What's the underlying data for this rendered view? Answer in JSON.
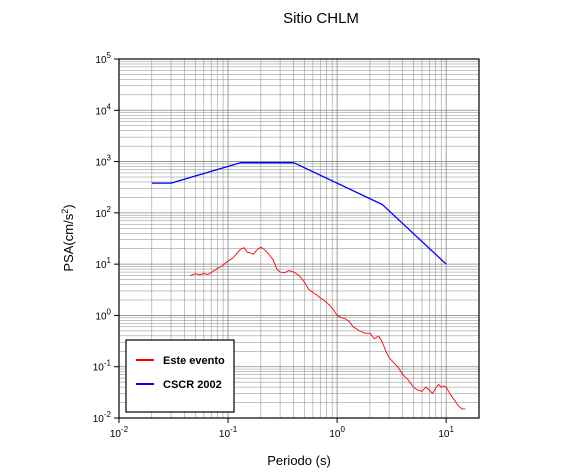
{
  "chart_data": {
    "type": "line",
    "title": "Sitio CHLM",
    "xlabel": "Periodo (s)",
    "ylabel_base": "PSA(cm/s",
    "ylabel_sup": "2",
    "ylabel_close": ")",
    "x_scale": "log",
    "y_scale": "log",
    "xlim": [
      0.01,
      20
    ],
    "ylim": [
      0.01,
      100000
    ],
    "grid": true,
    "legend_position": "bottom-left",
    "x_ticks": [
      {
        "value": 0.01,
        "base": "10",
        "exp": "-2"
      },
      {
        "value": 0.1,
        "base": "10",
        "exp": "-1"
      },
      {
        "value": 1,
        "base": "10",
        "exp": "0"
      },
      {
        "value": 10,
        "base": "10",
        "exp": "1"
      }
    ],
    "y_ticks": [
      {
        "value": 0.01,
        "base": "10",
        "exp": "-2"
      },
      {
        "value": 0.1,
        "base": "10",
        "exp": "-1"
      },
      {
        "value": 1,
        "base": "10",
        "exp": "0"
      },
      {
        "value": 10,
        "base": "10",
        "exp": "1"
      },
      {
        "value": 100,
        "base": "10",
        "exp": "2"
      },
      {
        "value": 1000,
        "base": "10",
        "exp": "3"
      },
      {
        "value": 10000,
        "base": "10",
        "exp": "4"
      },
      {
        "value": 100000,
        "base": "10",
        "exp": "5"
      }
    ],
    "series": [
      {
        "name": "Este evento",
        "color": "#ff0000",
        "x": [
          0.045,
          0.05,
          0.055,
          0.06,
          0.065,
          0.07,
          0.075,
          0.08,
          0.085,
          0.09,
          0.095,
          0.1,
          0.11,
          0.12,
          0.13,
          0.14,
          0.15,
          0.16,
          0.17,
          0.18,
          0.19,
          0.2,
          0.22,
          0.24,
          0.26,
          0.28,
          0.3,
          0.33,
          0.36,
          0.4,
          0.45,
          0.5,
          0.55,
          0.6,
          0.65,
          0.7,
          0.75,
          0.8,
          0.9,
          1.0,
          1.1,
          1.2,
          1.3,
          1.4,
          1.5,
          1.6,
          1.8,
          2.0,
          2.2,
          2.4,
          2.6,
          2.8,
          3.0,
          3.3,
          3.6,
          4.0,
          4.5,
          5.0,
          5.5,
          6.0,
          6.5,
          7.0,
          7.5,
          8.0,
          8.5,
          9.0,
          9.5,
          10.0,
          11.0,
          12.0,
          13.0,
          14.0,
          15.0
        ],
        "values": [
          6.0,
          6.5,
          6.2,
          6.6,
          6.3,
          6.8,
          7.5,
          8.3,
          8.8,
          9.5,
          10.5,
          11.5,
          13.0,
          16.0,
          19.5,
          21.0,
          17.0,
          16.5,
          15.5,
          18.0,
          20.0,
          21.5,
          18.5,
          15.0,
          12.0,
          8.0,
          7.0,
          6.8,
          7.5,
          7.0,
          6.0,
          4.5,
          3.2,
          2.8,
          2.5,
          2.2,
          2.0,
          1.8,
          1.4,
          1.0,
          0.9,
          0.85,
          0.75,
          0.6,
          0.55,
          0.5,
          0.45,
          0.45,
          0.35,
          0.4,
          0.3,
          0.2,
          0.15,
          0.12,
          0.1,
          0.07,
          0.055,
          0.04,
          0.035,
          0.033,
          0.04,
          0.035,
          0.03,
          0.038,
          0.045,
          0.04,
          0.042,
          0.04,
          0.028,
          0.022,
          0.017,
          0.015,
          0.015
        ]
      },
      {
        "name": "CSCR 2002",
        "color": "#0000ff",
        "x": [
          0.02,
          0.03,
          0.13,
          0.4,
          2.6,
          10.0
        ],
        "values": [
          380,
          380,
          950,
          950,
          145,
          10
        ]
      }
    ]
  }
}
